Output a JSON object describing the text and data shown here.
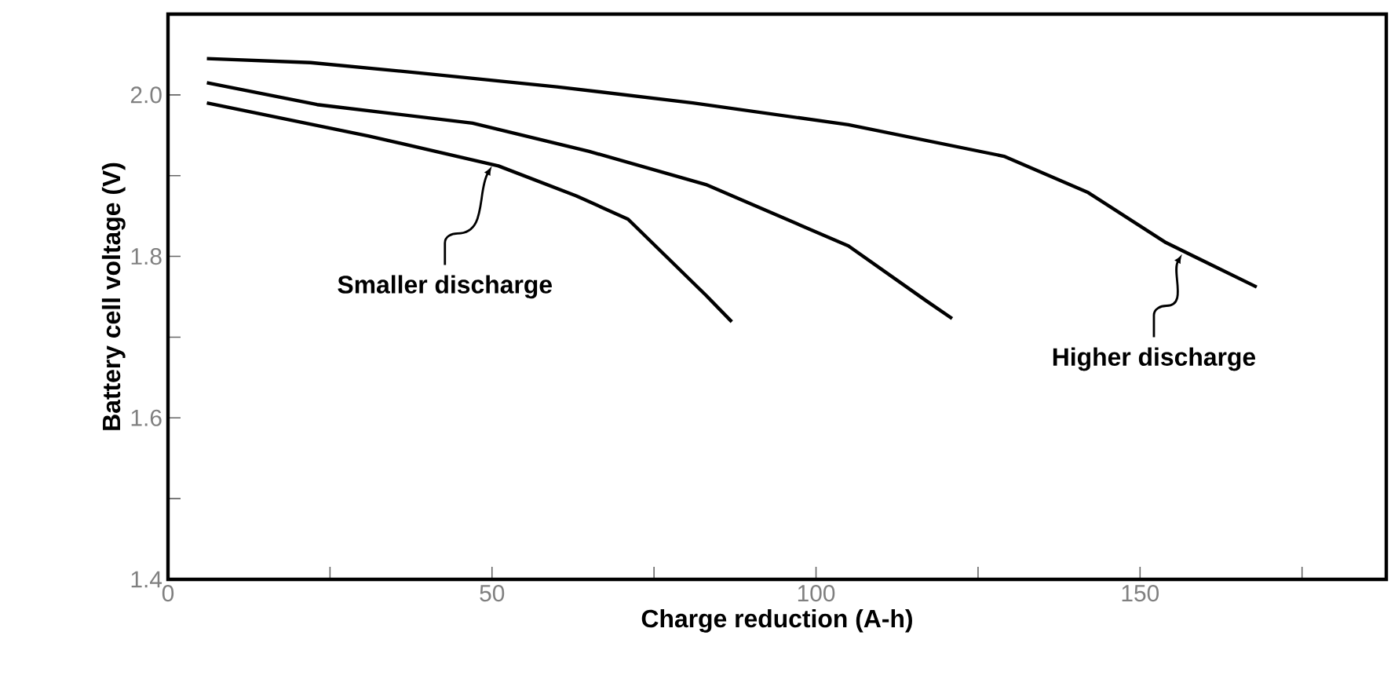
{
  "chart_data": {
    "type": "line",
    "xlabel": "Charge reduction (A-h)",
    "ylabel": "Battery cell voltage (V)",
    "xlim": [
      0,
      188
    ],
    "ylim": [
      1.4,
      2.1
    ],
    "xticks": [
      0,
      {
        "value": 25,
        "label": null
      },
      50,
      {
        "value": 75,
        "label": null
      },
      100,
      {
        "value": 125,
        "label": null
      },
      150,
      {
        "value": 175,
        "label": null
      }
    ],
    "yticks": [
      1.4,
      {
        "value": 1.5,
        "label": null
      },
      1.6,
      {
        "value": 1.7,
        "label": null
      },
      1.8,
      {
        "value": 1.9,
        "label": null
      },
      {
        "value": 2,
        "label": "2.0"
      }
    ],
    "marker": "none",
    "line_style": "solid",
    "grid": false,
    "series": [
      {
        "color": "#000000",
        "x": [
          6,
          22,
          39,
          60,
          81,
          105,
          129,
          142,
          154,
          168
        ],
        "values": [
          2.045,
          2.04,
          2.027,
          2.01,
          1.99,
          1.963,
          1.924,
          1.879,
          1.817,
          1.762
        ]
      },
      {
        "color": "#000000",
        "x": [
          6,
          23,
          47,
          65,
          83,
          105,
          117,
          121
        ],
        "values": [
          2.015,
          1.988,
          1.965,
          1.93,
          1.889,
          1.813,
          1.745,
          1.723
        ]
      },
      {
        "color": "#000000",
        "x": [
          6,
          31,
          51,
          63,
          71,
          83,
          87
        ],
        "values": [
          1.99,
          1.949,
          1.912,
          1.875,
          1.846,
          1.752,
          1.719
        ]
      }
    ],
    "annotations": [
      {
        "text": "Smaller discharge",
        "x": 50,
        "y": 1.912
      },
      {
        "text": "Higher discharge",
        "x": 156.5,
        "y": 1.803
      }
    ]
  }
}
